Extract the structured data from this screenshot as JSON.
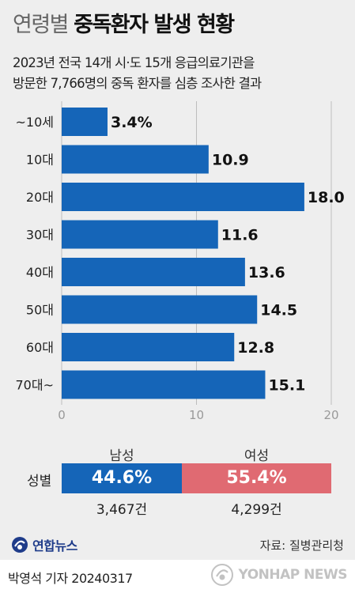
{
  "header": {
    "title_light": "연령별",
    "title_bold": "중독환자 발생 현황",
    "subtitle_line1": "2023년 전국 14개 시·도 15개 응급의료기관을",
    "subtitle_line2": "방문한 7,766명의 중독 환자를 심층 조사한 결과"
  },
  "chart_data": {
    "type": "bar",
    "orientation": "horizontal",
    "title": "연령별 중독환자 발생 현황",
    "categories": [
      "~10세",
      "10대",
      "20대",
      "30대",
      "40대",
      "50대",
      "60대",
      "70대~"
    ],
    "values": [
      3.4,
      10.9,
      18.0,
      11.6,
      13.6,
      14.5,
      12.8,
      15.1
    ],
    "value_labels": [
      "3.4%",
      "10.9",
      "18.0",
      "11.6",
      "13.6",
      "14.5",
      "12.8",
      "15.1"
    ],
    "xlim": [
      0,
      20
    ],
    "xticks": [
      "0",
      "10",
      "20"
    ],
    "xlabel": "",
    "ylabel": "",
    "grid": true,
    "bar_color": "#1565b8"
  },
  "gender": {
    "label": "성별",
    "male": {
      "name": "남성",
      "percent": "44.6%",
      "share": 44.6,
      "count": "3,467건",
      "color": "#1565b8"
    },
    "female": {
      "name": "여성",
      "percent": "55.4%",
      "share": 55.4,
      "count": "4,299건",
      "color": "#e06a72"
    }
  },
  "footer": {
    "logo_text": "연합뉴스",
    "source": "자료: 질병관리청",
    "credit": "박영석 기자  20240317",
    "watermark": "YONHAP NEWS"
  }
}
